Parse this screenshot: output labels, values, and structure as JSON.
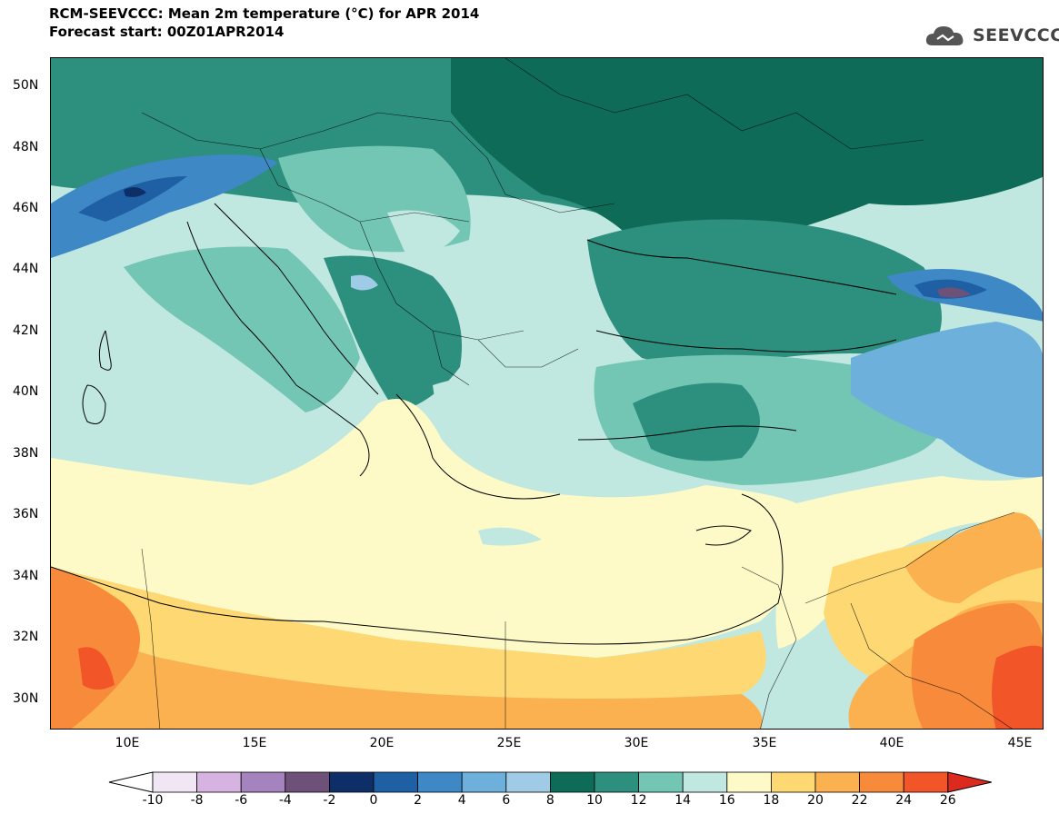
{
  "header": {
    "title": "RCM-SEEVCCC: Mean 2m temperature (°C) for APR 2014",
    "subtitle": "Forecast start: 00Z01APR2014",
    "logo_text": "SEEVCCC",
    "logo_icon": "cloud-logo-icon"
  },
  "map": {
    "lat_labels": [
      "50N",
      "48N",
      "46N",
      "44N",
      "42N",
      "40N",
      "38N",
      "36N",
      "34N",
      "32N",
      "30N"
    ],
    "lat_values": [
      50,
      48,
      46,
      44,
      42,
      40,
      38,
      36,
      34,
      32,
      30
    ],
    "lon_labels": [
      "10E",
      "15E",
      "20E",
      "25E",
      "30E",
      "35E",
      "40E",
      "45E"
    ],
    "lon_values": [
      10,
      15,
      20,
      25,
      30,
      35,
      40,
      45
    ],
    "lon_range": [
      7,
      46
    ],
    "lat_range": [
      29,
      51
    ]
  },
  "legend": {
    "labels": [
      "-10",
      "-8",
      "-6",
      "-4",
      "-2",
      "0",
      "2",
      "4",
      "6",
      "8",
      "10",
      "12",
      "14",
      "16",
      "18",
      "20",
      "22",
      "24",
      "26"
    ],
    "colors": [
      "#f0e6f4",
      "#d6b3e0",
      "#a583be",
      "#6e5178",
      "#0d2e66",
      "#1f5fa3",
      "#3d88c5",
      "#6eb0dc",
      "#9fcbe6",
      "#0e6b58",
      "#2d8f7e",
      "#73c5b4",
      "#c0e7e0",
      "#fefac8",
      "#fdd873",
      "#fbb150",
      "#f88a3b",
      "#f25528"
    ],
    "under_color": "#ffffff",
    "over_color": "#dc2a1f"
  }
}
